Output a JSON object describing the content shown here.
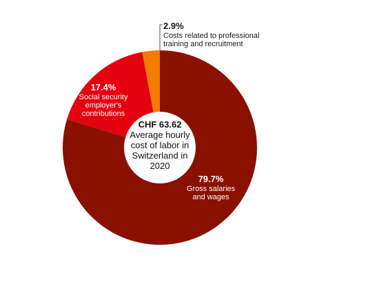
{
  "chart_data": {
    "type": "pie",
    "variant": "donut",
    "center": {
      "value": "CHF 63.62",
      "lines": [
        "Average hourly",
        "cost of labor in",
        "Switzerland in",
        "2020"
      ]
    },
    "slices": [
      {
        "pct_label": "79.7%",
        "value": 79.7,
        "label_lines": [
          "Gross salaries",
          "and wages"
        ],
        "color": "#8a1000"
      },
      {
        "pct_label": "17.4%",
        "value": 17.4,
        "label_lines": [
          "Social security",
          "employer's",
          "contributions"
        ],
        "color": "#e3000f"
      },
      {
        "pct_label": "2.9%",
        "value": 2.9,
        "label_lines": [
          "Costs related to professional",
          "training and recruitment"
        ],
        "color": "#f47c00"
      }
    ],
    "legend": "none"
  }
}
